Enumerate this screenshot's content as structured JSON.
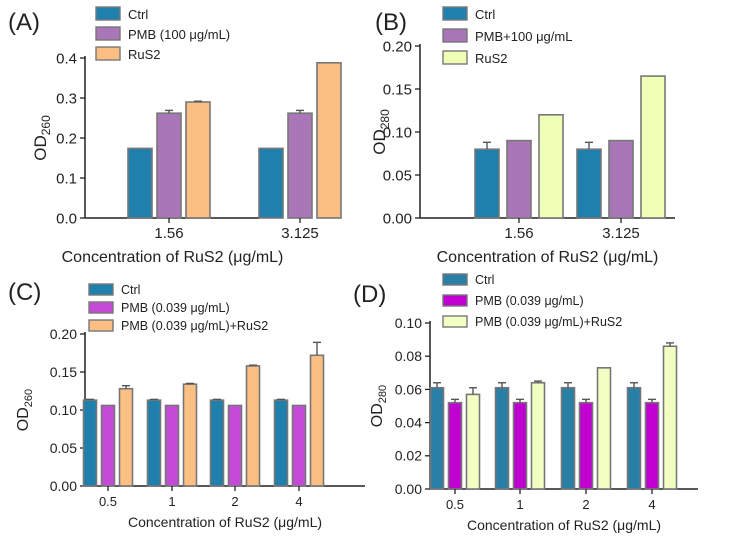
{
  "colors": {
    "ctrl": "#1f80ad",
    "pmb_a": "#a977b8",
    "rus2_a": "#fbbf83",
    "pmb_b": "#a977b8",
    "rus2_b": "#efffb6",
    "pmb_c": "#c44bd6",
    "combo_c": "#fbbf83",
    "ctrl_d": "#2a7fa6",
    "pmb_d": "#c000d1",
    "combo_d": "#f2ffc2",
    "outline": "#777777"
  },
  "chart_data": [
    {
      "panel": "(A)",
      "type": "bar",
      "categories": [
        "1.56",
        "3.125"
      ],
      "xlabel": "Concentration of RuS2 (μg/mL)",
      "ylabel_main": "OD",
      "ylabel_sub": "260",
      "ylim": [
        0,
        0.4
      ],
      "yticks": [
        0,
        0.1,
        0.2,
        0.3,
        0.4
      ],
      "ytick_labels": [
        "0.0",
        "0.1",
        "0.2",
        "0.3",
        "0.4"
      ],
      "series": [
        {
          "name": "Ctrl",
          "color": "ctrl",
          "values": [
            0.174,
            0.174
          ],
          "errors": [
            0,
            0
          ]
        },
        {
          "name": "PMB (100 μg/mL)",
          "color": "pmb_a",
          "values": [
            0.262,
            0.262
          ],
          "errors": [
            0.007,
            0.007
          ]
        },
        {
          "name": "RuS2",
          "color": "rus2_a",
          "values": [
            0.29,
            0.388
          ],
          "errors": [
            0.002,
            0
          ]
        }
      ]
    },
    {
      "panel": "(B)",
      "type": "bar",
      "categories": [
        "1.56",
        "3.125"
      ],
      "xlabel": "Concentration of RuS2 (μg/mL)",
      "ylabel_main": "OD",
      "ylabel_sub": "280",
      "ylim": [
        0,
        0.2
      ],
      "yticks": [
        0,
        0.05,
        0.1,
        0.15,
        0.2
      ],
      "ytick_labels": [
        "0.00",
        "0.05",
        "0.10",
        "0.15",
        "0.20"
      ],
      "series": [
        {
          "name": "Ctrl",
          "color": "ctrl",
          "values": [
            0.08,
            0.08
          ],
          "errors": [
            0.008,
            0.008
          ]
        },
        {
          "name": "PMB+100 μg/mL",
          "color": "pmb_b",
          "values": [
            0.09,
            0.09
          ],
          "errors": [
            0,
            0
          ]
        },
        {
          "name": "RuS2",
          "color": "rus2_b",
          "values": [
            0.12,
            0.165
          ],
          "errors": [
            0,
            0
          ]
        }
      ]
    },
    {
      "panel": "(C)",
      "type": "bar",
      "categories": [
        "0.5",
        "1",
        "2",
        "4"
      ],
      "xlabel": "Concentration of RuS2 (μg/mL)",
      "ylabel_main": "OD",
      "ylabel_sub": "260",
      "ylim": [
        0,
        0.2
      ],
      "yticks": [
        0,
        0.05,
        0.1,
        0.15,
        0.2
      ],
      "ytick_labels": [
        "0.00",
        "0.05",
        "0.10",
        "0.15",
        "0.20"
      ],
      "series": [
        {
          "name": "Ctrl",
          "color": "ctrl",
          "values": [
            0.113,
            0.113,
            0.113,
            0.113
          ],
          "errors": [
            0.001,
            0.001,
            0.001,
            0.001
          ]
        },
        {
          "name": "PMB (0.039 μg/mL)",
          "color": "pmb_c",
          "values": [
            0.106,
            0.106,
            0.106,
            0.106
          ],
          "errors": [
            0,
            0,
            0,
            0
          ]
        },
        {
          "name": "PMB (0.039 μg/mL)+RuS2",
          "color": "combo_c",
          "values": [
            0.128,
            0.134,
            0.158,
            0.172
          ],
          "errors": [
            0.004,
            0.001,
            0.001,
            0.017
          ]
        }
      ]
    },
    {
      "panel": "(D)",
      "type": "bar",
      "categories": [
        "0.5",
        "1",
        "2",
        "4"
      ],
      "xlabel": "Concentration of RuS2 (μg/mL)",
      "ylabel_main": "OD",
      "ylabel_sub": "280",
      "ylim": [
        0,
        0.1
      ],
      "yticks": [
        0,
        0.02,
        0.04,
        0.06,
        0.08,
        0.1
      ],
      "ytick_labels": [
        "0.00",
        "0.02",
        "0.04",
        "0.06",
        "0.08",
        "0.10"
      ],
      "series": [
        {
          "name": "Ctrl",
          "color": "ctrl_d",
          "values": [
            0.061,
            0.061,
            0.061,
            0.061
          ],
          "errors": [
            0.003,
            0.003,
            0.003,
            0.003
          ]
        },
        {
          "name": "PMB (0.039 μg/mL)",
          "color": "pmb_d",
          "values": [
            0.052,
            0.052,
            0.052,
            0.052
          ],
          "errors": [
            0.002,
            0.002,
            0.002,
            0.002
          ]
        },
        {
          "name": "PMB (0.039 μg/mL)+RuS2",
          "color": "combo_d",
          "values": [
            0.057,
            0.064,
            0.073,
            0.086
          ],
          "errors": [
            0.004,
            0.001,
            0,
            0.002
          ]
        }
      ]
    }
  ]
}
